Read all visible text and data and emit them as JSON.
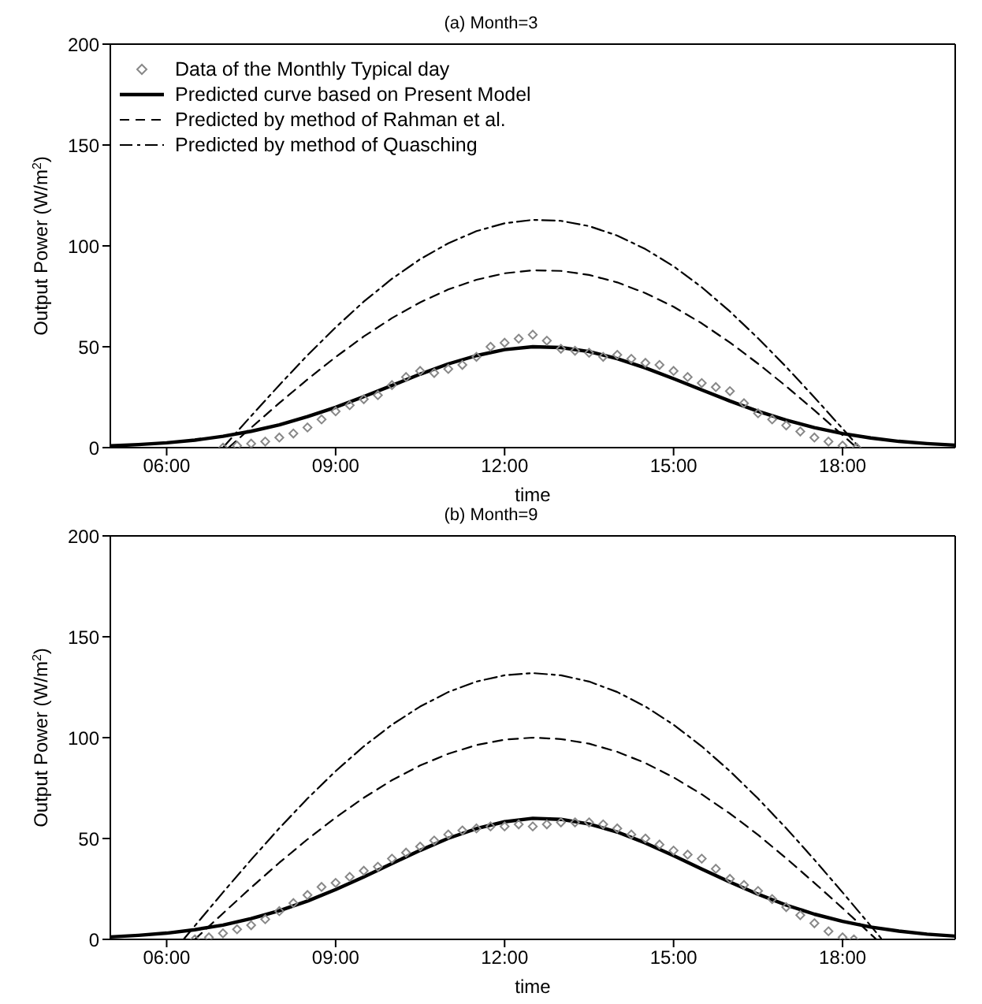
{
  "chart_data": [
    {
      "type": "line",
      "title": "(a) Month=3",
      "xlabel": "time",
      "ylabel": "Output Power (W/m$^{2}$)",
      "xlim": [
        5,
        20
      ],
      "xticks": [
        {
          "value": 6,
          "label": "06:00"
        },
        {
          "value": 9,
          "label": "09:00"
        },
        {
          "value": 12,
          "label": "12:00"
        },
        {
          "value": 15,
          "label": "15:00"
        },
        {
          "value": 18,
          "label": "18:00"
        }
      ],
      "ylim": [
        0,
        200
      ],
      "yticks": [
        0,
        50,
        100,
        150,
        200
      ],
      "grid": false,
      "legend": "top left",
      "series": [
        {
          "name": "Data of the Monthly Typical day",
          "type": "scatter",
          "marker": "diamond",
          "color": "#888888",
          "x": [
            7.0,
            7.25,
            7.5,
            7.75,
            8.0,
            8.25,
            8.5,
            8.75,
            9.0,
            9.25,
            9.5,
            9.75,
            10.0,
            10.25,
            10.5,
            10.75,
            11.0,
            11.25,
            11.5,
            11.75,
            12.0,
            12.25,
            12.5,
            12.75,
            13.0,
            13.25,
            13.5,
            13.75,
            14.0,
            14.25,
            14.5,
            14.75,
            15.0,
            15.25,
            15.5,
            15.75,
            16.0,
            16.25,
            16.5,
            16.75,
            17.0,
            17.25,
            17.5,
            17.75,
            18.0,
            18.25
          ],
          "values": [
            0,
            1,
            2,
            3,
            5,
            7,
            10,
            14,
            18,
            21,
            24,
            26,
            31,
            35,
            38,
            37,
            39,
            41,
            45,
            50,
            52,
            54,
            56,
            53,
            49,
            48,
            47,
            45,
            46,
            44,
            42,
            41,
            38,
            35,
            32,
            30,
            28,
            22,
            17,
            14,
            11,
            8,
            5,
            3,
            1,
            0
          ]
        },
        {
          "name": "Predicted curve based on Present Model",
          "type": "line",
          "line_style": "solid",
          "color": "#000000",
          "x": [
            5,
            5.5,
            6,
            6.5,
            7,
            7.5,
            8,
            8.5,
            9,
            9.5,
            10,
            10.5,
            11,
            11.5,
            12,
            12.5,
            13,
            13.5,
            14,
            14.5,
            15,
            15.5,
            16,
            16.5,
            17,
            17.5,
            18,
            18.5,
            19,
            19.5,
            20
          ],
          "values": [
            0.9,
            1.5,
            2.4,
            3.7,
            5.6,
            8.1,
            11.3,
            15.4,
            20,
            25.3,
            30.8,
            36.4,
            41.5,
            45.6,
            48.6,
            50,
            49.6,
            47.6,
            44.1,
            39.5,
            34.2,
            28.6,
            23.1,
            18,
            13.6,
            9.9,
            7,
            4.8,
            3.1,
            2,
            1.2
          ]
        },
        {
          "name": "Predicted by method of Rahman et al.",
          "type": "line",
          "line_style": "dashed",
          "color": "#000000",
          "x": [
            7.1,
            7.5,
            8,
            8.5,
            9,
            9.5,
            10,
            10.5,
            11,
            11.5,
            12,
            12.5,
            13,
            13.5,
            14,
            14.5,
            15,
            15.5,
            16,
            16.5,
            17,
            17.5,
            18,
            18.25
          ],
          "values": [
            0,
            9.9,
            22.1,
            33.8,
            44.9,
            55.1,
            64.2,
            72,
            78.4,
            83.2,
            86.4,
            87.9,
            87.6,
            85.6,
            81.9,
            76.6,
            69.8,
            61.6,
            52.1,
            41.6,
            30.4,
            18.5,
            6.2,
            0
          ]
        },
        {
          "name": "Predicted by method of Quasching",
          "type": "line",
          "line_style": "dashdot",
          "color": "#000000",
          "x": [
            7,
            7.5,
            8,
            8.5,
            9,
            9.5,
            10,
            10.5,
            11,
            11.5,
            12,
            12.5,
            13,
            13.5,
            14,
            14.5,
            15,
            15.5,
            16,
            16.5,
            17,
            17.5,
            18,
            18.3
          ],
          "values": [
            0,
            15.7,
            31,
            45.8,
            59.6,
            72.4,
            83.7,
            93.4,
            101.3,
            107.3,
            111.2,
            112.9,
            112.4,
            109.8,
            105.1,
            98.4,
            89.9,
            79.5,
            67.5,
            54.2,
            40,
            24.9,
            9.4,
            0
          ]
        }
      ]
    },
    {
      "type": "line",
      "title": "(b) Month=9",
      "xlabel": "time",
      "ylabel": "Output Power (W/m$^{2}$)",
      "xlim": [
        5,
        20
      ],
      "xticks": [
        {
          "value": 6,
          "label": "06:00"
        },
        {
          "value": 9,
          "label": "09:00"
        },
        {
          "value": 12,
          "label": "12:00"
        },
        {
          "value": 15,
          "label": "15:00"
        },
        {
          "value": 18,
          "label": "18:00"
        }
      ],
      "ylim": [
        0,
        200
      ],
      "yticks": [
        0,
        50,
        100,
        150,
        200
      ],
      "grid": false,
      "legend": false,
      "series": [
        {
          "type": "scatter",
          "marker": "diamond",
          "color": "#888888",
          "x": [
            6.5,
            6.75,
            7.0,
            7.25,
            7.5,
            7.75,
            8.0,
            8.25,
            8.5,
            8.75,
            9.0,
            9.25,
            9.5,
            9.75,
            10.0,
            10.25,
            10.5,
            10.75,
            11.0,
            11.25,
            11.5,
            11.75,
            12.0,
            12.25,
            12.5,
            12.75,
            13.0,
            13.25,
            13.5,
            13.75,
            14.0,
            14.25,
            14.5,
            14.75,
            15.0,
            15.25,
            15.5,
            15.75,
            16.0,
            16.25,
            16.5,
            16.75,
            17.0,
            17.25,
            17.5,
            17.75,
            18.0,
            18.2
          ],
          "values": [
            0,
            1,
            3,
            5,
            7,
            10,
            14,
            18,
            22,
            26,
            28,
            31,
            34,
            36,
            40,
            43,
            46,
            49,
            52,
            54,
            55,
            56,
            56,
            57,
            56,
            57,
            58,
            58,
            58,
            57,
            55,
            52,
            50,
            47,
            44,
            42,
            40,
            35,
            30,
            27,
            24,
            20,
            16,
            12,
            8,
            4,
            1,
            0
          ]
        },
        {
          "type": "line",
          "line_style": "solid",
          "color": "#000000",
          "x": [
            5,
            5.5,
            6,
            6.5,
            7,
            7.5,
            8,
            8.5,
            9,
            9.5,
            10,
            10.5,
            11,
            11.5,
            12,
            12.5,
            13,
            13.5,
            14,
            14.5,
            15,
            15.5,
            16,
            16.5,
            17,
            17.5,
            18,
            18.5,
            19,
            19.5,
            20
          ],
          "values": [
            1.2,
            2,
            3.1,
            4.8,
            7.1,
            10.3,
            14.2,
            19,
            24.7,
            31,
            37.6,
            44.1,
            50.1,
            54.9,
            58.3,
            60,
            59.5,
            57.2,
            53.2,
            47.8,
            41.5,
            34.9,
            28.4,
            22.4,
            17,
            12.5,
            8.9,
            6.1,
            4.1,
            2.6,
            1.6
          ]
        },
        {
          "type": "line",
          "line_style": "dashed",
          "color": "#000000",
          "x": [
            6.5,
            7,
            7.5,
            8,
            8.5,
            9,
            9.5,
            10,
            10.5,
            11,
            11.5,
            12,
            12.5,
            13,
            13.5,
            14,
            14.5,
            15,
            15.5,
            16,
            16.5,
            17,
            17.5,
            18,
            18.5,
            18.6
          ],
          "values": [
            0,
            12.9,
            25.7,
            38,
            49.6,
            60.4,
            70.2,
            78.9,
            86.2,
            92,
            96.3,
            99,
            100,
            99.3,
            97,
            93,
            87.4,
            80.3,
            71.9,
            62.4,
            51.8,
            40.2,
            28,
            15.5,
            2.6,
            0
          ]
        },
        {
          "type": "line",
          "line_style": "dashdot",
          "color": "#000000",
          "x": [
            6.3,
            6.5,
            7,
            7.5,
            8,
            8.5,
            9,
            9.5,
            10,
            10.5,
            11,
            11.5,
            12,
            12.5,
            13,
            13.5,
            14,
            14.5,
            15,
            15.5,
            16,
            16.5,
            17,
            17.5,
            18,
            18.5,
            18.7
          ],
          "values": [
            0,
            6.7,
            23.3,
            39.5,
            55.1,
            69.8,
            83.4,
            95.7,
            106.4,
            115.4,
            122.6,
            127.8,
            130.9,
            132,
            130.9,
            127.8,
            122.6,
            115.4,
            106.4,
            95.7,
            83.4,
            69.8,
            55.1,
            39.5,
            23.3,
            6.7,
            0
          ]
        }
      ]
    }
  ]
}
